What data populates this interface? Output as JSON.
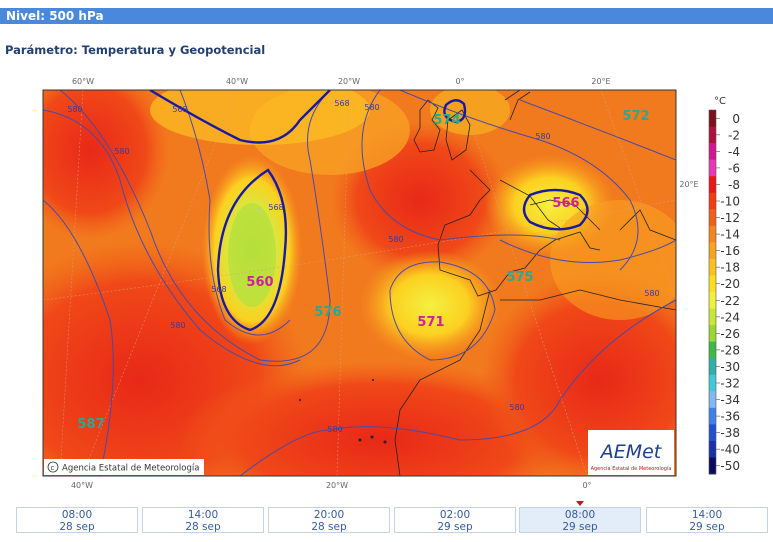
{
  "header": {
    "level": "Nivel: 500 hPa",
    "parameter": "Parámetro: Temperatura y Geopotencial"
  },
  "map": {
    "top_lon_labels": [
      "60°W",
      "40°W",
      "20°W",
      "0°",
      "20°E"
    ],
    "right_labels": [
      "20°E"
    ],
    "bottom_lon_labels": [
      "40°W",
      "20°W",
      "0°"
    ],
    "contour_labels": [
      "568",
      "568",
      "580",
      "580",
      "580",
      "568",
      "568",
      "580",
      "580",
      "580",
      "580",
      "580",
      "580"
    ],
    "centers": [
      {
        "text": "574",
        "color": "#2aa890"
      },
      {
        "text": "572",
        "color": "#2aa890"
      },
      {
        "text": "566",
        "color": "#d0209a"
      },
      {
        "text": "560",
        "color": "#d0209a"
      },
      {
        "text": "576",
        "color": "#2aa890"
      },
      {
        "text": "571",
        "color": "#d0209a"
      },
      {
        "text": "575",
        "color": "#2aa890"
      },
      {
        "text": "587",
        "color": "#2aa890"
      }
    ],
    "copyright": "Agencia Estatal de Meteorología",
    "logo": {
      "name": "AEMet",
      "subtitle": "Agencia Estatal de Meteorología"
    }
  },
  "legend": {
    "unit": "°C",
    "labels": [
      0,
      -2,
      -4,
      -6,
      -8,
      -10,
      -12,
      -14,
      -16,
      -18,
      -20,
      -22,
      -24,
      -26,
      -28,
      -30,
      -32,
      -34,
      -36,
      -38,
      -40,
      -50
    ],
    "colors": [
      "#7a1020",
      "#b0103c",
      "#d01890",
      "#e838b8",
      "#e81818",
      "#f03c10",
      "#f06018",
      "#f48420",
      "#f8a420",
      "#fcc020",
      "#fce020",
      "#f0f040",
      "#c8e838",
      "#98d830",
      "#40b848",
      "#30b0a8",
      "#40c8d8",
      "#80b8f0",
      "#4080e8",
      "#2050d0",
      "#1830a8",
      "#0a0a60"
    ]
  },
  "timeline": {
    "selected": 4,
    "steps": [
      {
        "time": "08:00",
        "date": "28 sep"
      },
      {
        "time": "14:00",
        "date": "28 sep"
      },
      {
        "time": "20:00",
        "date": "28 sep"
      },
      {
        "time": "02:00",
        "date": "29 sep"
      },
      {
        "time": "08:00",
        "date": "29 sep"
      },
      {
        "time": "14:00",
        "date": "29 sep"
      }
    ]
  }
}
